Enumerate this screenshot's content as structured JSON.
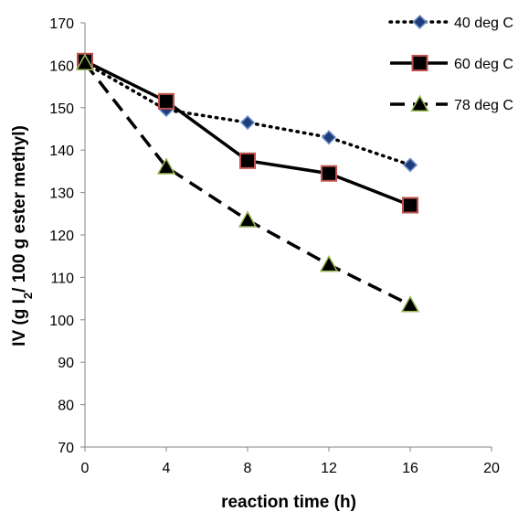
{
  "chart_data": {
    "type": "line",
    "title": "",
    "xlabel": "reaction time (h)",
    "ylabel": {
      "pre": "IV (g I",
      "sub": "2",
      "post": "/ 100 g ester methyl)"
    },
    "xlim": [
      0,
      20
    ],
    "ylim": [
      70,
      170
    ],
    "xticks": [
      "0",
      "4",
      "8",
      "12",
      "16",
      "20"
    ],
    "yticks": [
      "70",
      "80",
      "90",
      "100",
      "110",
      "120",
      "130",
      "140",
      "150",
      "160",
      "170"
    ],
    "grid": false,
    "legend_position": "top-right",
    "series": [
      {
        "name": "40 deg C",
        "line_style": "dotted",
        "marker": "diamond",
        "marker_fill": "#1f3d7a",
        "marker_stroke": "#6b8fc8",
        "x": [
          0,
          4,
          8,
          12,
          16
        ],
        "y": [
          160.5,
          149.5,
          146.5,
          143,
          136.5
        ]
      },
      {
        "name": "60 deg C",
        "line_style": "solid",
        "marker": "square",
        "marker_fill": "#000000",
        "marker_stroke": "#c0504d",
        "x": [
          0,
          4,
          8,
          12,
          16
        ],
        "y": [
          161,
          151.5,
          137.5,
          134.5,
          127
        ]
      },
      {
        "name": "78 deg C",
        "line_style": "dashed",
        "marker": "triangle",
        "marker_fill": "#000000",
        "marker_stroke": "#9bbb59",
        "x": [
          0,
          4,
          8,
          12,
          16
        ],
        "y": [
          160.5,
          136,
          123.5,
          113,
          103.5
        ]
      }
    ]
  }
}
